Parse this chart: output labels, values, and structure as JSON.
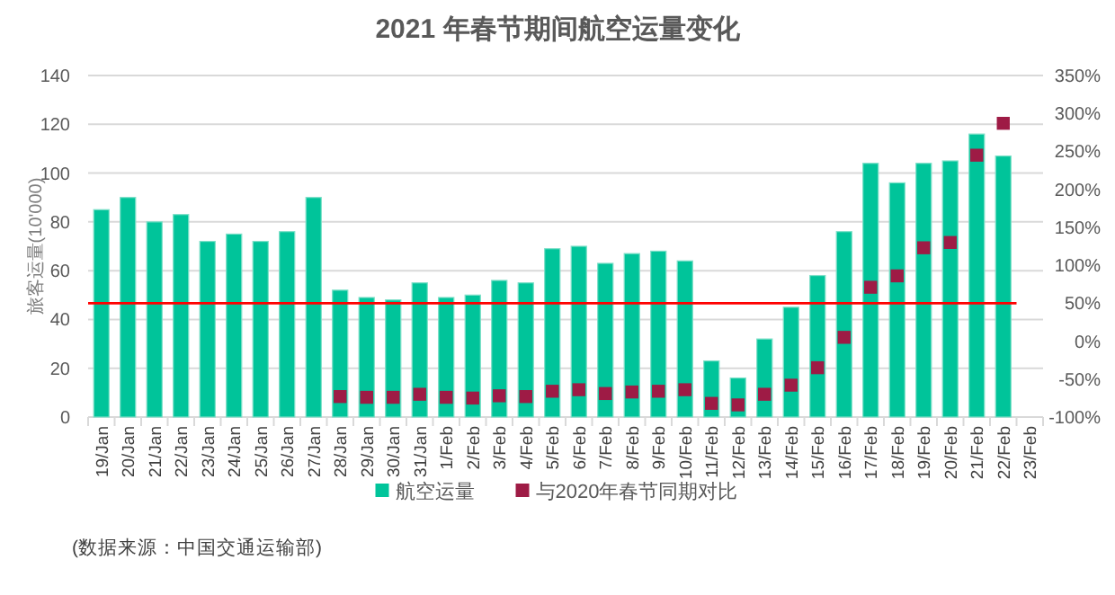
{
  "chart_data": {
    "type": "bar",
    "title": "2021 年春节期间航空运量变化",
    "ylabel": "旅客运量(10'000)",
    "categories": [
      "19/Jan",
      "20/Jan",
      "21/Jan",
      "22/Jan",
      "23/Jan",
      "24/Jan",
      "25/Jan",
      "26/Jan",
      "27/Jan",
      "28/Jan",
      "29/Jan",
      "30/Jan",
      "31/Jan",
      "1/Feb",
      "2/Feb",
      "3/Feb",
      "4/Feb",
      "5/Feb",
      "6/Feb",
      "7/Feb",
      "8/Feb",
      "9/Feb",
      "10/Feb",
      "11/Feb",
      "12/Feb",
      "13/Feb",
      "14/Feb",
      "15/Feb",
      "16/Feb",
      "17/Feb",
      "18/Feb",
      "19/Feb",
      "20/Feb",
      "21/Feb",
      "22/Feb",
      "23/Feb"
    ],
    "series": [
      {
        "name": "航空运量",
        "color": "#00c49a",
        "values": [
          85,
          90,
          80,
          83,
          72,
          75,
          72,
          76,
          90,
          52,
          49,
          48,
          55,
          49,
          50,
          56,
          55,
          69,
          70,
          63,
          67,
          68,
          64,
          23,
          16,
          32,
          45,
          58,
          76,
          104,
          96,
          104,
          105,
          116,
          107,
          null
        ]
      },
      {
        "name": "与2020年春节同期对比",
        "type": "scatter",
        "axis": "y2",
        "marker": "square",
        "color": "#9e1b45",
        "values": [
          null,
          null,
          null,
          null,
          null,
          null,
          null,
          null,
          null,
          -73,
          -74,
          -74,
          -70,
          -74,
          -75,
          -72,
          -73,
          -66,
          -64,
          -69,
          -67,
          -66,
          -64,
          -82,
          -84,
          -70,
          -58,
          -35,
          5,
          71,
          86,
          123,
          130,
          245,
          287,
          null
        ]
      }
    ],
    "ylim": [
      0,
      140
    ],
    "yticks": [
      0,
      20,
      40,
      60,
      80,
      100,
      120,
      140
    ],
    "y2lim": [
      -100,
      350
    ],
    "y2ticks": [
      {
        "value": -100,
        "label": "-100%"
      },
      {
        "value": -50,
        "label": "-50%"
      },
      {
        "value": 0,
        "label": "0%"
      },
      {
        "value": 50,
        "label": "50%"
      },
      {
        "value": 100,
        "label": "100%"
      },
      {
        "value": 150,
        "label": "150%"
      },
      {
        "value": 200,
        "label": "200%"
      },
      {
        "value": 250,
        "label": "250%"
      },
      {
        "value": 300,
        "label": "300%"
      },
      {
        "value": 350,
        "label": "350%"
      }
    ],
    "ref_lines": [
      {
        "axis": "y2",
        "value": 50,
        "color": "#ff0000"
      }
    ],
    "grid": "y",
    "legend": "bottom",
    "annotations": [
      "(数据来源：中国交通运输部)"
    ]
  }
}
